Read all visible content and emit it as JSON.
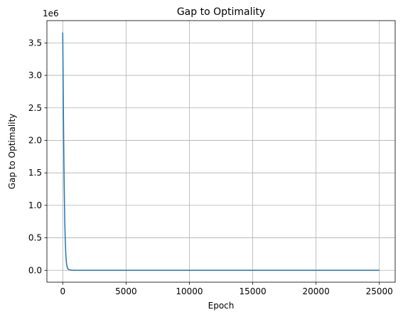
{
  "chart_data": {
    "type": "line",
    "title": "Gap to Optimality",
    "xlabel": "Epoch",
    "ylabel": "Gap to Optimality",
    "y_scale_label": "1e6",
    "xlim": [
      -1250,
      26250
    ],
    "ylim": [
      -0.183,
      3.843
    ],
    "y_unit_multiplier": 1000000,
    "grid": true,
    "line_color": "#1f77b4",
    "grid_color": "#b0b0b0",
    "x_ticks": [
      0,
      5000,
      10000,
      15000,
      20000,
      25000
    ],
    "x_tick_labels": [
      "0",
      "5000",
      "10000",
      "15000",
      "20000",
      "25000"
    ],
    "y_ticks": [
      0.0,
      0.5,
      1.0,
      1.5,
      2.0,
      2.5,
      3.0,
      3.5
    ],
    "y_tick_labels": [
      "0.0",
      "0.5",
      "1.0",
      "1.5",
      "2.0",
      "2.5",
      "3.0",
      "3.5"
    ],
    "series": [
      {
        "x": [
          0,
          20,
          40,
          60,
          80,
          100,
          130,
          160,
          200,
          250,
          300,
          350,
          400,
          500,
          600,
          800,
          1000,
          2000,
          5000,
          10000,
          15000,
          20000,
          25000
        ],
        "values": [
          3.66,
          3.2,
          2.75,
          2.3,
          1.9,
          1.55,
          1.1,
          0.75,
          0.45,
          0.22,
          0.1,
          0.05,
          0.025,
          0.01,
          0.004,
          0.001,
          0.0,
          0.0,
          0.0,
          0.0,
          0.0,
          0.0,
          0.0
        ]
      }
    ]
  }
}
